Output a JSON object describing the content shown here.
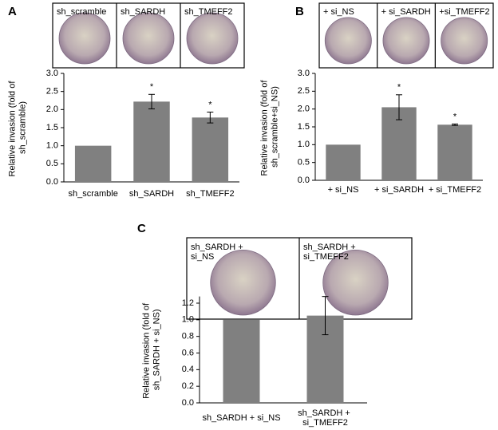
{
  "chart_data": [
    {
      "type": "bar",
      "panel": "A",
      "image_labels": [
        "sh_scramble",
        "sh_SARDH",
        "sh_TMEFF2"
      ],
      "y_label": "Relative invasion (fold of sh_scramble)",
      "categories": [
        "sh_scramble",
        "sh_SARDH",
        "sh_TMEFF2"
      ],
      "values": [
        1.0,
        2.22,
        1.78
      ],
      "errors": [
        0,
        0.2,
        0.15
      ],
      "significance": [
        null,
        "*",
        "*"
      ],
      "color": "#808080",
      "ylim": [
        0,
        3
      ],
      "yticks": [
        {
          "value": 0,
          "label": "0.0"
        },
        0.5,
        {
          "value": 1,
          "label": "1.0"
        },
        1.5,
        {
          "value": 2,
          "label": "2.0"
        },
        2.5,
        {
          "value": 3,
          "label": "3.0"
        }
      ]
    },
    {
      "type": "bar",
      "panel": "B",
      "image_labels": [
        "+ si_NS",
        "+ si_SARDH",
        "+si_TMEFF2"
      ],
      "y_label": "Relative invasion (fold of sh_scramble+si_NS)",
      "categories": [
        "+ si_NS",
        "+ si_SARDH",
        "+ si_TMEFF2"
      ],
      "values": [
        1.0,
        2.05,
        1.56
      ],
      "errors": [
        0,
        0.35,
        0.02
      ],
      "significance": [
        null,
        "*",
        "*"
      ],
      "color": "#808080",
      "ylim": [
        0,
        3
      ],
      "yticks": [
        {
          "value": 0,
          "label": "0.0"
        },
        0.5,
        {
          "value": 1,
          "label": "1.0"
        },
        1.5,
        {
          "value": 2,
          "label": "2.0"
        },
        2.5,
        {
          "value": 3,
          "label": "3.0"
        }
      ]
    },
    {
      "type": "bar",
      "panel": "C",
      "image_labels": [
        "sh_SARDH + si_NS",
        "sh_SARDH + si_TMEFF2"
      ],
      "y_label": "Relative invasion (fold of sh_SARDH + si_NS)",
      "categories": [
        "sh_SARDH + si_NS",
        "sh_SARDH + si_TMEFF2"
      ],
      "values": [
        1.0,
        1.05
      ],
      "errors": [
        0,
        0.23
      ],
      "significance": [
        null,
        null
      ],
      "color": "#808080",
      "ylim": [
        0,
        1.28
      ],
      "yticks": [
        {
          "value": 0,
          "label": "0.0"
        },
        0.2,
        0.4,
        0.6,
        0.8,
        {
          "value": 1,
          "label": "1.0"
        },
        1.2
      ]
    }
  ]
}
